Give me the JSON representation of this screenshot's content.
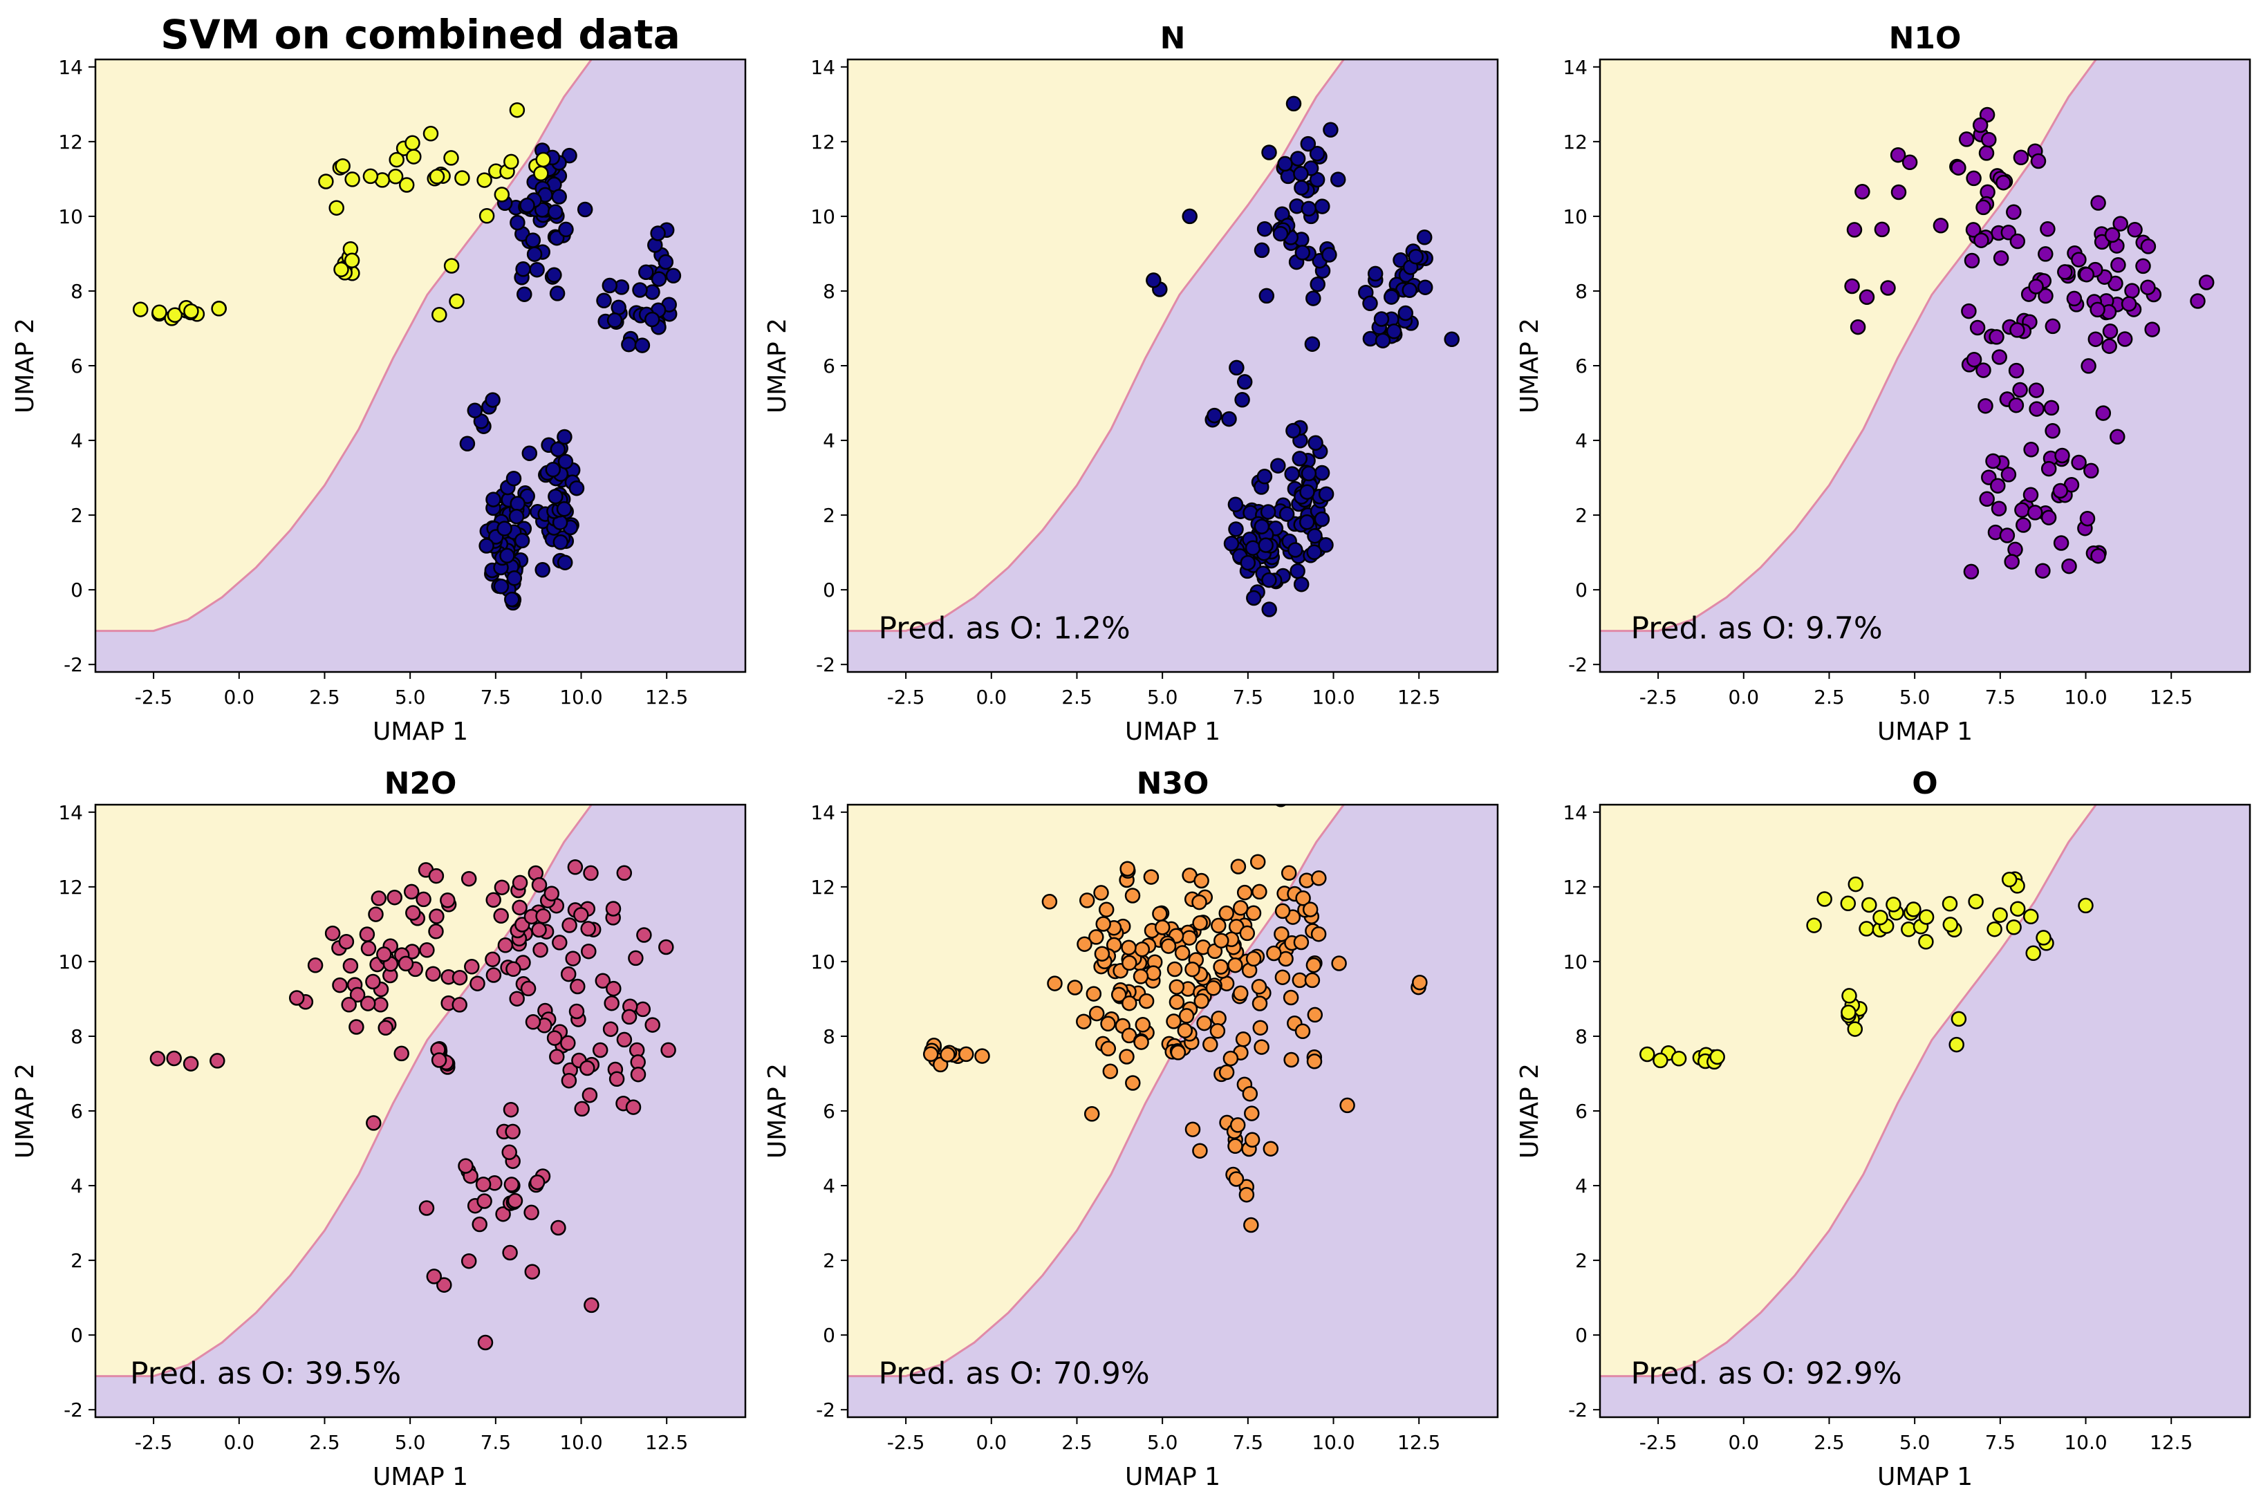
{
  "figure": {
    "colors": {
      "region_o": "#fcf5d1",
      "region_other": "#d7cbeb",
      "boundary_line": "#e08aa8",
      "marker_edge": "#000000",
      "axes_frame": "#000000"
    }
  },
  "chart_data": [
    {
      "type": "scatter",
      "title": "SVM on combined data",
      "xlabel": "UMAP 1",
      "ylabel": "UMAP 2",
      "xlim": [
        -4.2,
        14.8
      ],
      "ylim": [
        -2.2,
        14.2
      ],
      "xticks": [
        "-2.5",
        "0.0",
        "2.5",
        "5.0",
        "7.5",
        "10.0",
        "12.5"
      ],
      "yticks": [
        "-2",
        "0",
        "2",
        "4",
        "6",
        "8",
        "10",
        "12",
        "14"
      ],
      "annotation": "",
      "series": [
        {
          "name": "N",
          "color": "#0d0887",
          "clusters": [
            [
              7.9,
              1.2,
              1.0,
              2.6,
              60
            ],
            [
              9.3,
              2.5,
              0.9,
              2.9,
              45
            ],
            [
              8.9,
              10.0,
              1.5,
              3.4,
              45
            ],
            [
              11.7,
              7.5,
              1.8,
              2.0,
              25
            ],
            [
              12.4,
              9.0,
              0.6,
              1.2,
              8
            ],
            [
              7.1,
              4.8,
              0.8,
              1.8,
              6
            ]
          ]
        },
        {
          "name": "O",
          "color": "#f0f921",
          "clusters": [
            [
              -1.5,
              7.4,
              1.6,
              0.3,
              12
            ],
            [
              3.2,
              8.7,
              0.4,
              0.8,
              8
            ],
            [
              4.6,
              11.2,
              3.2,
              1.2,
              20
            ],
            [
              7.7,
              11.3,
              2.0,
              1.9,
              10
            ],
            [
              6.2,
              7.8,
              0.4,
              1.5,
              3
            ]
          ]
        }
      ]
    },
    {
      "type": "scatter",
      "title": "N",
      "xlabel": "UMAP 1",
      "ylabel": "UMAP 2",
      "xlim": [
        -4.2,
        14.8
      ],
      "ylim": [
        -2.2,
        14.2
      ],
      "xticks": [
        "-2.5",
        "0.0",
        "2.5",
        "5.0",
        "7.5",
        "10.0",
        "12.5"
      ],
      "yticks": [
        "-2",
        "0",
        "2",
        "4",
        "6",
        "8",
        "10",
        "12",
        "14"
      ],
      "annotation": "Pred. as O: 1.2%",
      "series": [
        {
          "name": "N",
          "color": "#0d0887",
          "clusters": [
            [
              7.9,
              1.2,
              1.0,
              2.6,
              60
            ],
            [
              9.3,
              2.5,
              0.9,
              2.9,
              45
            ],
            [
              8.9,
              10.0,
              1.5,
              3.4,
              45
            ],
            [
              11.7,
              7.5,
              1.8,
              2.0,
              25
            ],
            [
              12.4,
              9.0,
              0.6,
              1.2,
              8
            ],
            [
              7.1,
              4.8,
              0.8,
              1.8,
              6
            ],
            [
              4.9,
              8.0,
              1.0,
              0.6,
              2
            ],
            [
              5.8,
              10.0,
              0.2,
              0.2,
              1
            ]
          ]
        }
      ]
    },
    {
      "type": "scatter",
      "title": "N1O",
      "xlabel": "UMAP 1",
      "ylabel": "UMAP 2",
      "xlim": [
        -4.2,
        14.8
      ],
      "ylim": [
        -2.2,
        14.2
      ],
      "xticks": [
        "-2.5",
        "0.0",
        "2.5",
        "5.0",
        "7.5",
        "10.0",
        "12.5"
      ],
      "yticks": [
        "-2",
        "0",
        "2",
        "4",
        "6",
        "8",
        "10",
        "12",
        "14"
      ],
      "annotation": "Pred. as O: 9.7%",
      "series": [
        {
          "name": "N1O",
          "color": "#7e03a8",
          "clusters": [
            [
              3.8,
              9.5,
              1.4,
              2.8,
              10
            ],
            [
              7.4,
              10.5,
              2.0,
              3.0,
              30
            ],
            [
              10.5,
              8.0,
              4.5,
              3.4,
              55
            ],
            [
              7.6,
              6.2,
              1.6,
              2.2,
              15
            ],
            [
              8.4,
              2.6,
              2.4,
              3.2,
              40
            ],
            [
              10.3,
              0.9,
              0.3,
              0.2,
              3
            ]
          ]
        }
      ]
    },
    {
      "type": "scatter",
      "title": "N2O",
      "xlabel": "UMAP 1",
      "ylabel": "UMAP 2",
      "xlim": [
        -4.2,
        14.8
      ],
      "ylim": [
        -2.2,
        14.2
      ],
      "xticks": [
        "-2.5",
        "0.0",
        "2.5",
        "5.0",
        "7.5",
        "10.0",
        "12.5"
      ],
      "yticks": [
        "-2",
        "0",
        "2",
        "4",
        "6",
        "8",
        "10",
        "12",
        "14"
      ],
      "annotation": "Pred. as O: 39.5%",
      "series": [
        {
          "name": "N2O",
          "color": "#cc4778",
          "clusters": [
            [
              -1.5,
              7.4,
              1.6,
              0.2,
              4
            ],
            [
              4.5,
              10.0,
              3.2,
              3.2,
              45
            ],
            [
              8.4,
              10.6,
              4.0,
              3.2,
              60
            ],
            [
              10.5,
              7.8,
              4.2,
              3.0,
              35
            ],
            [
              6.0,
              7.4,
              0.8,
              0.4,
              8
            ],
            [
              7.6,
              4.0,
              2.6,
              3.6,
              30
            ],
            [
              10.3,
              0.8,
              0.2,
              0.2,
              1
            ],
            [
              7.2,
              -0.2,
              0.2,
              0.2,
              1
            ]
          ]
        }
      ]
    },
    {
      "type": "scatter",
      "title": "N3O",
      "xlabel": "UMAP 1",
      "ylabel": "UMAP 2",
      "xlim": [
        -4.2,
        14.8
      ],
      "ylim": [
        -2.2,
        14.2
      ],
      "xticks": [
        "-2.5",
        "0.0",
        "2.5",
        "5.0",
        "7.5",
        "10.0",
        "12.5"
      ],
      "yticks": [
        "-2",
        "0",
        "2",
        "4",
        "6",
        "8",
        "10",
        "12",
        "14"
      ],
      "annotation": "Pred. as O: 70.9%",
      "series": [
        {
          "name": "N3O",
          "color": "#f89540",
          "clusters": [
            [
              -1.1,
              7.5,
              1.6,
              0.3,
              12
            ],
            [
              3.6,
              9.0,
              1.2,
              4.0,
              35
            ],
            [
              5.8,
              10.5,
              4.6,
              3.2,
              90
            ],
            [
              8.7,
              10.5,
              3.2,
              3.6,
              35
            ],
            [
              5.5,
              8.0,
              2.4,
              1.0,
              20
            ],
            [
              7.2,
              5.2,
              1.2,
              3.6,
              20
            ],
            [
              9.2,
              7.2,
              2.4,
              1.6,
              6
            ],
            [
              12.5,
              9.3,
              0.1,
              0.3,
              2
            ]
          ]
        }
      ]
    },
    {
      "type": "scatter",
      "title": "O",
      "xlabel": "UMAP 1",
      "ylabel": "UMAP 2",
      "xlim": [
        -4.2,
        14.8
      ],
      "ylim": [
        -2.2,
        14.2
      ],
      "xticks": [
        "-2.5",
        "0.0",
        "2.5",
        "5.0",
        "7.5",
        "10.0",
        "12.5"
      ],
      "yticks": [
        "-2",
        "0",
        "2",
        "4",
        "6",
        "8",
        "10",
        "12",
        "14"
      ],
      "annotation": "Pred. as O: 92.9%",
      "series": [
        {
          "name": "O",
          "color": "#f0f921",
          "clusters": [
            [
              -1.5,
              7.4,
              1.6,
              0.3,
              12
            ],
            [
              3.2,
              8.7,
              0.4,
              0.8,
              8
            ],
            [
              4.6,
              11.2,
              3.2,
              1.2,
              20
            ],
            [
              7.7,
              11.3,
              2.0,
              1.9,
              10
            ],
            [
              6.2,
              7.8,
              0.4,
              1.5,
              2
            ],
            [
              10.0,
              11.5,
              0.2,
              0.2,
              1
            ],
            [
              8.8,
              10.5,
              0.2,
              0.2,
              2
            ]
          ]
        }
      ]
    }
  ],
  "decision_boundary": [
    [
      -4.2,
      -1.1
    ],
    [
      -3.5,
      -1.1
    ],
    [
      -2.5,
      -1.1
    ],
    [
      -1.5,
      -0.8
    ],
    [
      -0.5,
      -0.2
    ],
    [
      0.5,
      0.6
    ],
    [
      1.5,
      1.6
    ],
    [
      2.5,
      2.8
    ],
    [
      3.5,
      4.3
    ],
    [
      4.5,
      6.2
    ],
    [
      5.5,
      7.9
    ],
    [
      6.5,
      9.1
    ],
    [
      7.5,
      10.3
    ],
    [
      8.5,
      11.6
    ],
    [
      9.5,
      13.2
    ],
    [
      10.3,
      14.2
    ]
  ]
}
